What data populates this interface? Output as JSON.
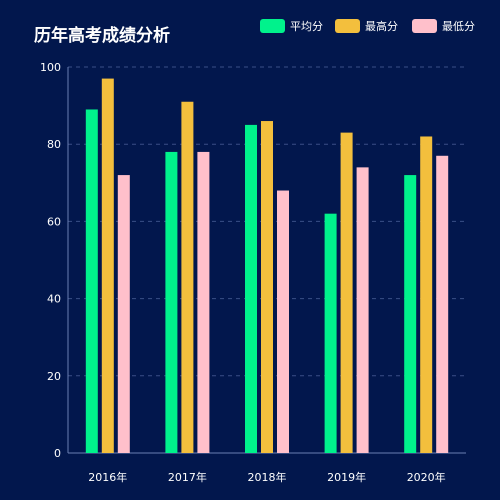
{
  "chart_data": {
    "type": "bar",
    "title": "历年高考成绩分析",
    "categories": [
      "2016年",
      "2017年",
      "2018年",
      "2019年",
      "2020年"
    ],
    "series": [
      {
        "name": "平均分",
        "color": "#00f28c",
        "values": [
          89,
          78,
          85,
          62,
          72
        ]
      },
      {
        "name": "最高分",
        "color": "#f3bf3d",
        "values": [
          97,
          91,
          86,
          83,
          82
        ]
      },
      {
        "name": "最低分",
        "color": "#ffc0cb",
        "values": [
          72,
          78,
          68,
          74,
          77
        ]
      }
    ],
    "ylim": [
      0,
      100
    ],
    "yticks": [
      "0",
      "20",
      "40",
      "60",
      "80",
      "100"
    ],
    "xlabel": "",
    "ylabel": "",
    "grid": true,
    "legend_position": "top-right",
    "background_color": "#02174d",
    "grid_color": "#3a4f86"
  }
}
